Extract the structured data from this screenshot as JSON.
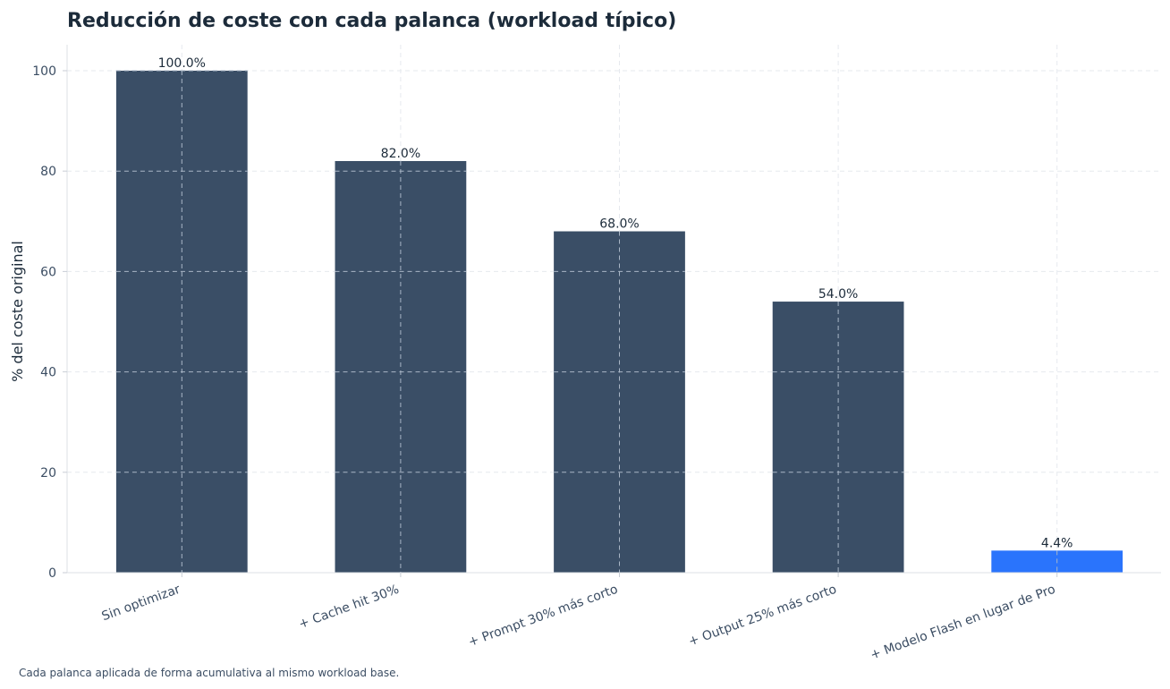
{
  "chart_data": {
    "type": "bar",
    "title": "Reducción de coste con cada palanca (workload típico)",
    "xlabel": "",
    "ylabel": "% del coste original",
    "categories": [
      "Sin optimizar",
      "+ Cache hit 30%",
      "+ Prompt 30% más corto",
      "+ Output 25% más corto",
      "+ Modelo Flash en lugar de Pro"
    ],
    "values": [
      100.0,
      82.0,
      68.0,
      54.0,
      4.4
    ],
    "data_labels": [
      "100.0%",
      "82.0%",
      "68.0%",
      "54.0%",
      "4.4%"
    ],
    "bar_colors": [
      "#3a4e66",
      "#3a4e66",
      "#3a4e66",
      "#3a4e66",
      "#2a74fc"
    ],
    "ylim": [
      0,
      105
    ],
    "yticks": [
      0,
      20,
      40,
      60,
      80,
      100
    ],
    "grid": true
  },
  "footnote": "Cada palanca aplicada de forma acumulativa al mismo workload base."
}
